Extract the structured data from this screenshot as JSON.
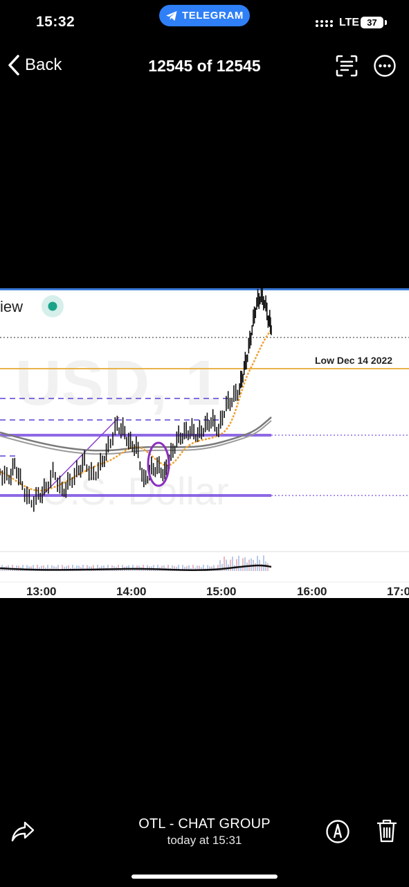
{
  "status_bar": {
    "time": "15:32",
    "telegram_pill": "TELEGRAM",
    "network": "LTE",
    "battery": "37"
  },
  "nav": {
    "back_label": "Back",
    "title": "12545 of 12545",
    "icons": [
      "chevron-left-icon",
      "scan-text-icon",
      "more-icon"
    ]
  },
  "photo": {
    "top_left_text": "iew",
    "watermark_1": "USD, 1",
    "watermark_2": "U.S. Dollar",
    "level_label": "Low Dec 14 2022",
    "time_labels": [
      "13:00",
      "14:00",
      "15:00",
      "16:00",
      "17:0"
    ],
    "colors": {
      "price_bars": "#111111",
      "level_line": "#e8b34a",
      "purple_lines": "#7a4de0",
      "ellipse": "#8a2fc0",
      "moving_avg_fast": "#f0a030",
      "moving_avg_slow": "#8a8a8a",
      "status_dot": "#1aa388"
    }
  },
  "bottom_bar": {
    "chat_name": "OTL - CHAT GROUP",
    "timestamp": "today at 15:31",
    "icons": [
      "share-icon",
      "markup-icon",
      "trash-icon"
    ]
  }
}
